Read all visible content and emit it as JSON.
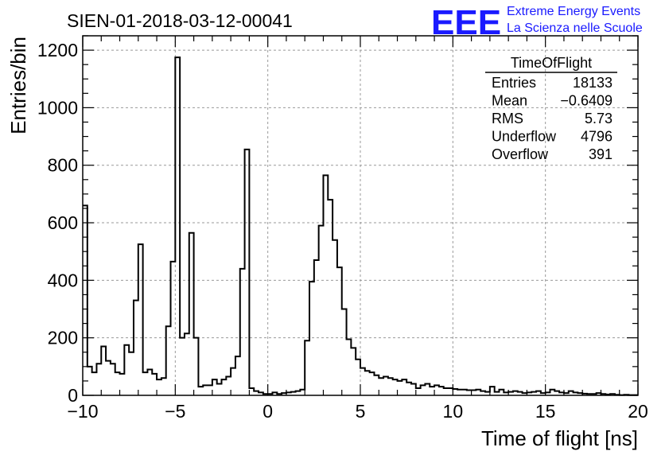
{
  "chart_data": {
    "type": "histogram",
    "title": "SIEN-01-2018-03-12-00041",
    "xlabel": "Time of flight [ns]",
    "ylabel": "Entries/bin",
    "xlim": [
      -10,
      20
    ],
    "ylim": [
      0,
      1250
    ],
    "grid": true,
    "xticks": [
      -10,
      -5,
      0,
      5,
      10,
      15,
      20
    ],
    "xtick_labels": [
      "−10",
      "−5",
      "0",
      "5",
      "10",
      "15",
      "20"
    ],
    "yticks": [
      0,
      200,
      400,
      600,
      800,
      1000,
      1200
    ],
    "bin_width": 0.25,
    "bin_start": -10,
    "values": [
      660,
      100,
      80,
      110,
      170,
      120,
      110,
      80,
      75,
      175,
      150,
      330,
      525,
      80,
      90,
      75,
      55,
      60,
      240,
      465,
      1175,
      200,
      215,
      565,
      200,
      30,
      35,
      35,
      55,
      40,
      55,
      65,
      95,
      135,
      440,
      855,
      25,
      15,
      10,
      5,
      5,
      10,
      5,
      8,
      10,
      12,
      15,
      20,
      190,
      395,
      470,
      590,
      765,
      680,
      540,
      445,
      300,
      195,
      165,
      125,
      95,
      85,
      80,
      70,
      60,
      65,
      60,
      55,
      50,
      55,
      45,
      40,
      25,
      35,
      40,
      30,
      35,
      30,
      25,
      25,
      22,
      20,
      20,
      18,
      18,
      20,
      15,
      12,
      30,
      12,
      20,
      10,
      12,
      15,
      12,
      8,
      10,
      12,
      15,
      8,
      10,
      20,
      15,
      10,
      8,
      15,
      10,
      8,
      6,
      5,
      5,
      8,
      5,
      3,
      5,
      2,
      1,
      2,
      1,
      1
    ]
  },
  "stats_box": {
    "title": "TimeOfFlight",
    "rows": [
      {
        "label": "Entries",
        "value": "18133"
      },
      {
        "label": "Mean",
        "value": "−0.6409"
      },
      {
        "label": "RMS",
        "value": "5.73"
      },
      {
        "label": "Underflow",
        "value": "4796"
      },
      {
        "label": "Overflow",
        "value": "391"
      }
    ]
  },
  "logo": {
    "letters": "EEE",
    "line1": "Extreme Energy Events",
    "line2": "La Scienza nelle Scuole",
    "color": "#1a1aff"
  }
}
